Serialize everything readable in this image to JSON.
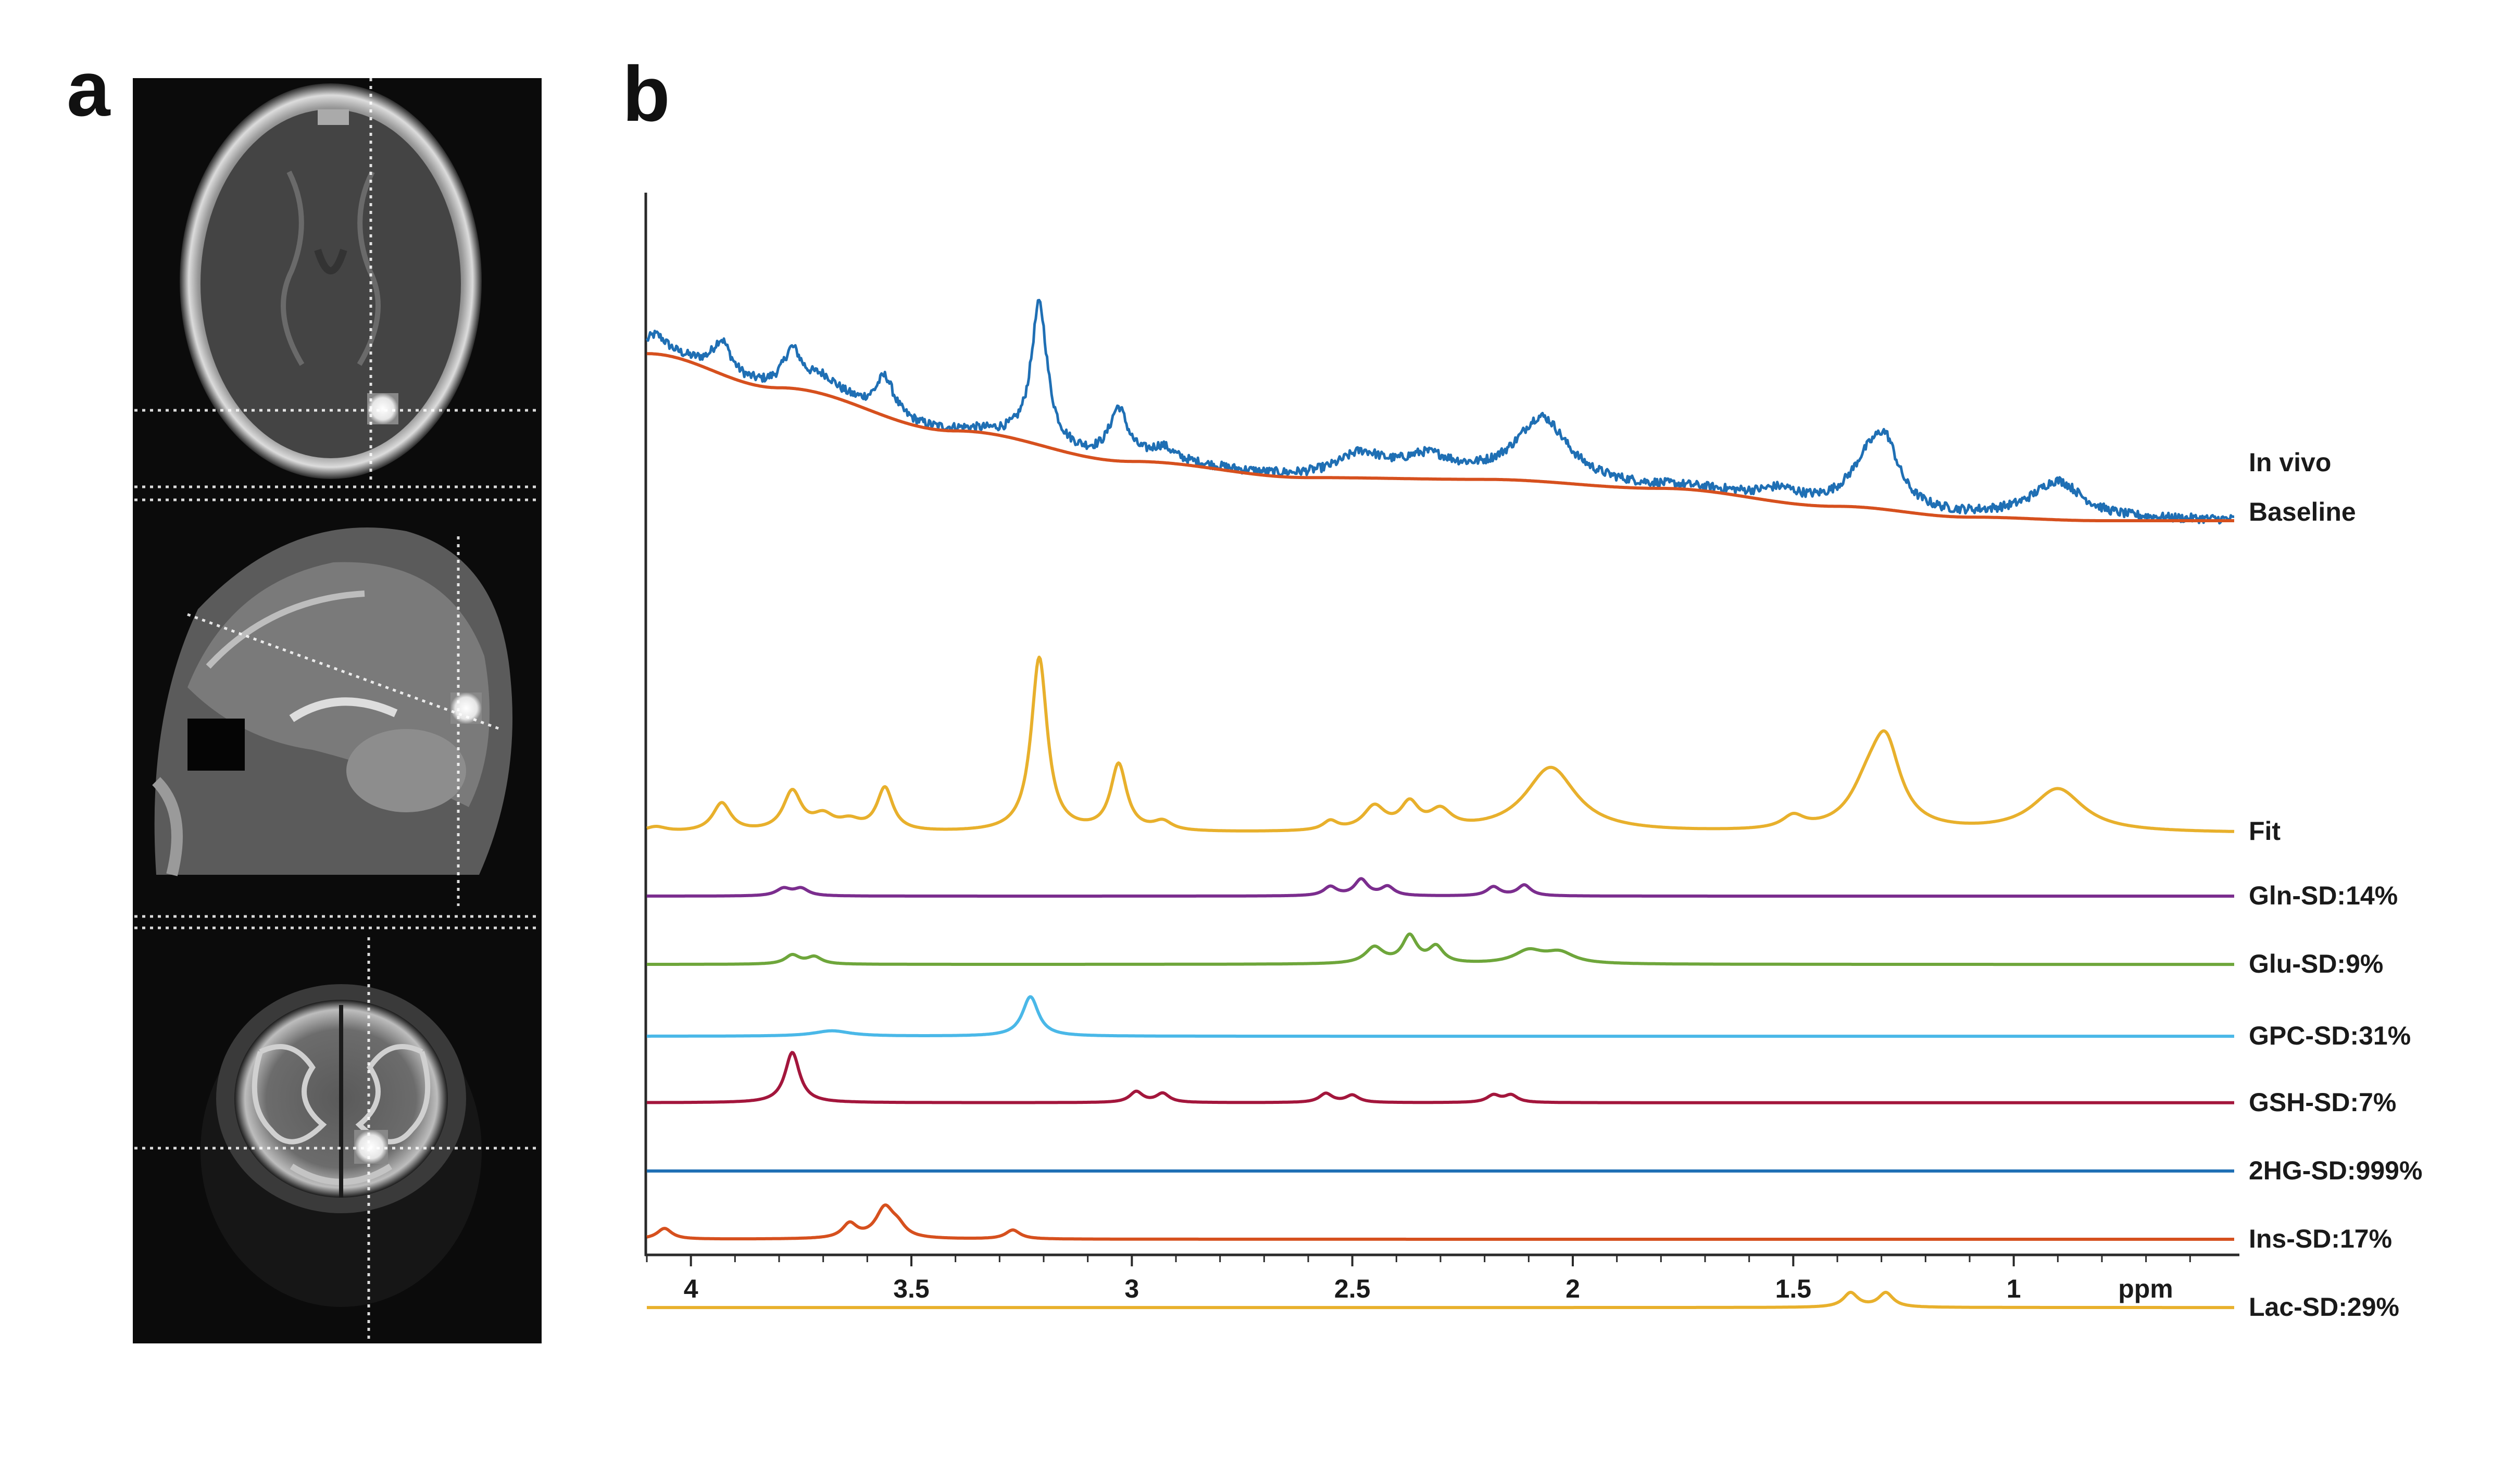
{
  "panels": {
    "a": {
      "letter": "a",
      "views": [
        "axial",
        "sagittal",
        "coronal"
      ]
    },
    "b": {
      "letter": "b"
    }
  },
  "chart_data": {
    "type": "line",
    "title": "",
    "xlabel": "ppm",
    "ylabel": "",
    "x_reversed": true,
    "xlim": [
      4.1,
      0.5
    ],
    "xticks": [
      4,
      3.5,
      3,
      2.5,
      2,
      1.5,
      1
    ],
    "xtick_labels": [
      "4",
      "3.5",
      "3",
      "2.5",
      "2",
      "1.5",
      "1"
    ],
    "grid": false,
    "series": [
      {
        "name": "In vivo",
        "color": "#1f6fb4",
        "offset": 0,
        "noisy": true,
        "baseline_ppm": [
          4.1,
          3.8,
          3.4,
          3.0,
          2.6,
          2.2,
          1.8,
          1.4,
          1.1,
          0.8,
          0.5
        ],
        "baseline_amp": [
          0.93,
          0.74,
          0.5,
          0.33,
          0.24,
          0.23,
          0.18,
          0.08,
          0.02,
          0.0,
          0.0
        ],
        "peaks": [
          {
            "ppm": 4.08,
            "amp": 0.1,
            "width": 0.03
          },
          {
            "ppm": 3.93,
            "amp": 0.18,
            "width": 0.025
          },
          {
            "ppm": 3.77,
            "amp": 0.2,
            "width": 0.025
          },
          {
            "ppm": 3.7,
            "amp": 0.08,
            "width": 0.04
          },
          {
            "ppm": 3.56,
            "amp": 0.21,
            "width": 0.025
          },
          {
            "ppm": 3.21,
            "amp": 0.78,
            "width": 0.022
          },
          {
            "ppm": 3.03,
            "amp": 0.28,
            "width": 0.025
          },
          {
            "ppm": 2.93,
            "amp": 0.07,
            "width": 0.03
          },
          {
            "ppm": 2.48,
            "amp": 0.12,
            "width": 0.06
          },
          {
            "ppm": 2.33,
            "amp": 0.11,
            "width": 0.07
          },
          {
            "ppm": 2.07,
            "amp": 0.35,
            "width": 0.07
          },
          {
            "ppm": 1.53,
            "amp": 0.06,
            "width": 0.05
          },
          {
            "ppm": 1.33,
            "amp": 0.22,
            "width": 0.05
          },
          {
            "ppm": 1.29,
            "amp": 0.28,
            "width": 0.035
          },
          {
            "ppm": 0.9,
            "amp": 0.21,
            "width": 0.07
          }
        ]
      },
      {
        "name": "Baseline",
        "color": "#d6501e",
        "offset": 0,
        "noisy": false,
        "baseline_ppm": [
          4.1,
          3.8,
          3.4,
          3.0,
          2.6,
          2.2,
          1.8,
          1.4,
          1.1,
          0.8,
          0.5
        ],
        "baseline_amp": [
          0.93,
          0.74,
          0.5,
          0.33,
          0.24,
          0.23,
          0.18,
          0.08,
          0.02,
          0.0,
          0.0
        ],
        "peaks": []
      },
      {
        "name": "Fit",
        "color": "#e8b02c",
        "offset": -1.74,
        "noisy": false,
        "peaks": [
          {
            "ppm": 4.08,
            "amp": 0.03,
            "width": 0.03
          },
          {
            "ppm": 3.93,
            "amp": 0.16,
            "width": 0.025
          },
          {
            "ppm": 3.77,
            "amp": 0.22,
            "width": 0.025
          },
          {
            "ppm": 3.7,
            "amp": 0.08,
            "width": 0.03
          },
          {
            "ppm": 3.64,
            "amp": 0.05,
            "width": 0.03
          },
          {
            "ppm": 3.56,
            "amp": 0.24,
            "width": 0.022
          },
          {
            "ppm": 3.21,
            "amp": 0.97,
            "width": 0.022
          },
          {
            "ppm": 3.03,
            "amp": 0.37,
            "width": 0.022
          },
          {
            "ppm": 2.93,
            "amp": 0.05,
            "width": 0.025
          },
          {
            "ppm": 2.55,
            "amp": 0.05,
            "width": 0.02
          },
          {
            "ppm": 2.45,
            "amp": 0.13,
            "width": 0.03
          },
          {
            "ppm": 2.37,
            "amp": 0.14,
            "width": 0.025
          },
          {
            "ppm": 2.3,
            "amp": 0.1,
            "width": 0.03
          },
          {
            "ppm": 2.05,
            "amp": 0.36,
            "width": 0.07
          },
          {
            "ppm": 1.5,
            "amp": 0.07,
            "width": 0.03
          },
          {
            "ppm": 1.33,
            "amp": 0.2,
            "width": 0.05
          },
          {
            "ppm": 1.29,
            "amp": 0.43,
            "width": 0.04
          },
          {
            "ppm": 0.9,
            "amp": 0.24,
            "width": 0.07
          }
        ]
      },
      {
        "name": "Gln-SD:14%",
        "color": "#7b2d8e",
        "offset": -2.09,
        "noisy": false,
        "peaks": [
          {
            "ppm": 3.79,
            "amp": 0.04,
            "width": 0.02
          },
          {
            "ppm": 3.75,
            "amp": 0.04,
            "width": 0.02
          },
          {
            "ppm": 2.48,
            "amp": 0.09,
            "width": 0.018
          },
          {
            "ppm": 2.55,
            "amp": 0.05,
            "width": 0.018
          },
          {
            "ppm": 2.42,
            "amp": 0.05,
            "width": 0.018
          },
          {
            "ppm": 2.18,
            "amp": 0.05,
            "width": 0.018
          },
          {
            "ppm": 2.11,
            "amp": 0.06,
            "width": 0.018
          }
        ]
      },
      {
        "name": "Glu-SD:9%",
        "color": "#6ea63b",
        "offset": -2.47,
        "noisy": false,
        "peaks": [
          {
            "ppm": 3.77,
            "amp": 0.05,
            "width": 0.02
          },
          {
            "ppm": 3.72,
            "amp": 0.04,
            "width": 0.02
          },
          {
            "ppm": 2.45,
            "amp": 0.09,
            "width": 0.025
          },
          {
            "ppm": 2.37,
            "amp": 0.15,
            "width": 0.02
          },
          {
            "ppm": 2.31,
            "amp": 0.09,
            "width": 0.02
          },
          {
            "ppm": 2.1,
            "amp": 0.07,
            "width": 0.04
          },
          {
            "ppm": 2.03,
            "amp": 0.06,
            "width": 0.04
          }
        ]
      },
      {
        "name": "GPC-SD:31%",
        "color": "#4ab8e8",
        "offset": -2.87,
        "noisy": false,
        "peaks": [
          {
            "ppm": 3.23,
            "amp": 0.22,
            "width": 0.022
          },
          {
            "ppm": 3.68,
            "amp": 0.03,
            "width": 0.05
          }
        ]
      },
      {
        "name": "GSH-SD:7%",
        "color": "#a3163c",
        "offset": -3.24,
        "noisy": false,
        "peaks": [
          {
            "ppm": 3.77,
            "amp": 0.28,
            "width": 0.02
          },
          {
            "ppm": 2.99,
            "amp": 0.06,
            "width": 0.018
          },
          {
            "ppm": 2.93,
            "amp": 0.05,
            "width": 0.018
          },
          {
            "ppm": 2.56,
            "amp": 0.05,
            "width": 0.018
          },
          {
            "ppm": 2.5,
            "amp": 0.04,
            "width": 0.018
          },
          {
            "ppm": 2.18,
            "amp": 0.04,
            "width": 0.018
          },
          {
            "ppm": 2.14,
            "amp": 0.04,
            "width": 0.018
          }
        ]
      },
      {
        "name": "2HG-SD:999%",
        "color": "#1f6fb4",
        "offset": -3.62,
        "noisy": false,
        "peaks": []
      },
      {
        "name": "Ins-SD:17%",
        "color": "#d6501e",
        "offset": -4.0,
        "noisy": false,
        "peaks": [
          {
            "ppm": 4.06,
            "amp": 0.06,
            "width": 0.02
          },
          {
            "ppm": 3.64,
            "amp": 0.08,
            "width": 0.02
          },
          {
            "ppm": 3.56,
            "amp": 0.17,
            "width": 0.025
          },
          {
            "ppm": 3.27,
            "amp": 0.05,
            "width": 0.02
          },
          {
            "ppm": 3.53,
            "amp": 0.05,
            "width": 0.02
          }
        ]
      },
      {
        "name": "Lac-SD:29%",
        "color": "#e8b02c",
        "offset": -4.38,
        "noisy": false,
        "peaks": [
          {
            "ppm": 1.37,
            "amp": 0.08,
            "width": 0.02
          },
          {
            "ppm": 1.29,
            "amp": 0.08,
            "width": 0.02
          }
        ]
      }
    ]
  }
}
